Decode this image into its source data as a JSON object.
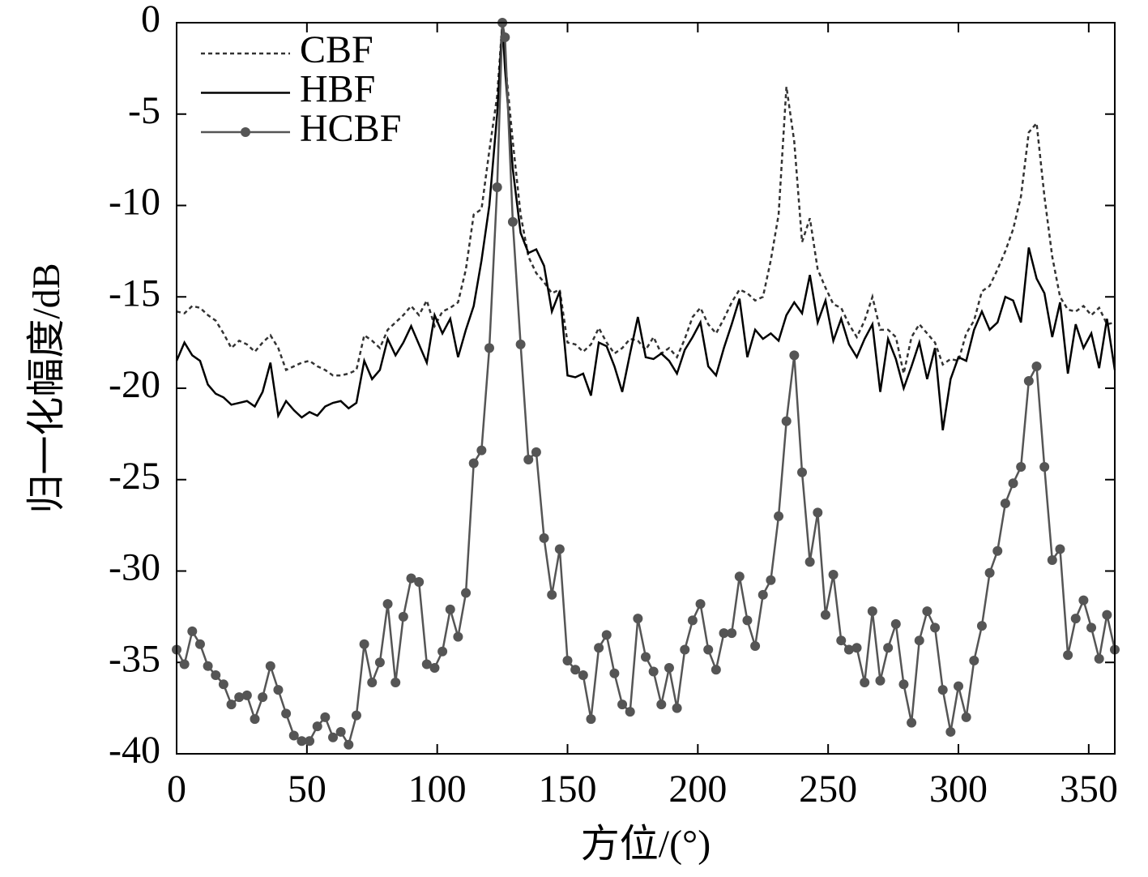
{
  "chart_data": {
    "type": "line",
    "xlabel": "方位/(°)",
    "ylabel": "归一化幅度/dB",
    "xlim": [
      0,
      360
    ],
    "xticks": [
      0,
      50,
      100,
      150,
      200,
      250,
      300,
      350
    ],
    "ylim": [
      -40,
      0
    ],
    "yticks": [
      -40,
      -35,
      -30,
      -25,
      -20,
      -15,
      -10,
      -5,
      0
    ],
    "grid": false,
    "legend": "upper left",
    "x": [
      0,
      3,
      6,
      9,
      12,
      15,
      18,
      21,
      24,
      27,
      30,
      33,
      36,
      39,
      42,
      45,
      48,
      51,
      54,
      57,
      60,
      63,
      66,
      69,
      72,
      75,
      78,
      81,
      84,
      87,
      90,
      93,
      96,
      99,
      102,
      105,
      108,
      111,
      114,
      117,
      120,
      123,
      125,
      126,
      129,
      132,
      135,
      138,
      141,
      144,
      147,
      150,
      153,
      156,
      159,
      162,
      165,
      168,
      171,
      174,
      177,
      180,
      183,
      186,
      189,
      192,
      195,
      198,
      201,
      204,
      207,
      210,
      213,
      216,
      219,
      222,
      225,
      228,
      231,
      234,
      237,
      240,
      243,
      246,
      249,
      252,
      255,
      258,
      261,
      264,
      267,
      270,
      273,
      276,
      279,
      282,
      285,
      288,
      291,
      294,
      297,
      300,
      303,
      306,
      309,
      312,
      315,
      318,
      321,
      324,
      327,
      330,
      333,
      336,
      339,
      342,
      345,
      348,
      351,
      354,
      357,
      360
    ],
    "series": [
      {
        "name": "CBF",
        "color": "#333333",
        "linestyle": "dotted",
        "marker": "none",
        "values": [
          -15.8,
          -15.9,
          -15.5,
          -15.6,
          -16,
          -16.3,
          -17,
          -17.8,
          -17.4,
          -17.6,
          -18,
          -17.5,
          -17.1,
          -17.8,
          -19,
          -18.8,
          -18.6,
          -18.5,
          -18.8,
          -19,
          -19.3,
          -19.3,
          -19.2,
          -19,
          -17.1,
          -17.4,
          -17.8,
          -16.8,
          -16.4,
          -16,
          -15.5,
          -16,
          -15.2,
          -16.6,
          -15.8,
          -15.6,
          -15.3,
          -13.5,
          -10.5,
          -10.2,
          -7,
          -4,
          0,
          -2,
          -6.5,
          -10.5,
          -12.8,
          -13.7,
          -14.2,
          -14.8,
          -14.6,
          -17.5,
          -17.6,
          -18,
          -17.6,
          -16.7,
          -17.5,
          -18.1,
          -17.8,
          -17.3,
          -17.4,
          -17.9,
          -17.2,
          -18.1,
          -17.8,
          -18.3,
          -17.3,
          -16.1,
          -15.6,
          -16.5,
          -17,
          -16.2,
          -15.3,
          -14.6,
          -14.8,
          -15.2,
          -15,
          -13,
          -10.5,
          -3.5,
          -6.5,
          -12,
          -10.7,
          -13.5,
          -14.5,
          -15.4,
          -15.6,
          -16.5,
          -17.2,
          -16.3,
          -15,
          -16.8,
          -16.8,
          -17.2,
          -19.2,
          -17.2,
          -16.5,
          -17,
          -17.5,
          -18.7,
          -18.4,
          -18.5,
          -17,
          -16.3,
          -14.7,
          -14.4,
          -13.5,
          -12.5,
          -11.3,
          -9.5,
          -6,
          -5.5,
          -9.5,
          -12.8,
          -15,
          -15.7,
          -15.8,
          -15.5,
          -16,
          -15.6,
          -16.5,
          -16.4
        ]
      },
      {
        "name": "HBF",
        "color": "#000000",
        "linestyle": "solid",
        "marker": "none",
        "values": [
          -18.5,
          -17.5,
          -18.2,
          -18.5,
          -19.8,
          -20.3,
          -20.5,
          -20.9,
          -20.8,
          -20.7,
          -21,
          -20.2,
          -18.6,
          -21.5,
          -20.7,
          -21.2,
          -21.6,
          -21.3,
          -21.5,
          -21,
          -20.8,
          -20.7,
          -21.1,
          -20.8,
          -18.5,
          -19.5,
          -19,
          -17.3,
          -18.2,
          -17.5,
          -16.6,
          -17.6,
          -18.6,
          -16,
          -17,
          -16.2,
          -18.3,
          -16.8,
          -15.5,
          -13,
          -10,
          -5,
          0,
          -2.5,
          -8,
          -11.5,
          -12.6,
          -12.4,
          -13.3,
          -15.8,
          -14.7,
          -19.3,
          -19.4,
          -19.2,
          -20.4,
          -17.5,
          -17.7,
          -18.8,
          -20.2,
          -18.1,
          -16.1,
          -18.3,
          -18.4,
          -18.1,
          -18.5,
          -19.2,
          -17.9,
          -17.2,
          -16.4,
          -18.8,
          -19.3,
          -17.8,
          -16.5,
          -15.1,
          -18.3,
          -16.8,
          -17.3,
          -17,
          -17.4,
          -16,
          -15.3,
          -15.9,
          -13.8,
          -16.4,
          -15.2,
          -17.4,
          -16.2,
          -17.6,
          -18.3,
          -17.3,
          -16.5,
          -20.2,
          -17.3,
          -18.4,
          -20,
          -18.8,
          -17.5,
          -19.5,
          -17.8,
          -22.3,
          -19.5,
          -18.3,
          -18.5,
          -16.8,
          -15.8,
          -16.8,
          -16.4,
          -15,
          -15.2,
          -16.4,
          -12.3,
          -14,
          -14.8,
          -17.2,
          -15.3,
          -19.2,
          -16.5,
          -17.8,
          -17,
          -18.9,
          -16.2,
          -19
        ]
      },
      {
        "name": "HCBF",
        "color": "#555555",
        "linestyle": "solid",
        "marker": "circle",
        "values": [
          -34.3,
          -35.1,
          -33.3,
          -34,
          -35.2,
          -35.7,
          -36.2,
          -37.3,
          -36.9,
          -36.8,
          -38.1,
          -36.9,
          -35.2,
          -36.5,
          -37.8,
          -39,
          -39.3,
          -39.3,
          -38.5,
          -38,
          -39.1,
          -38.8,
          -39.5,
          -37.9,
          -34,
          -36.1,
          -35,
          -31.8,
          -36.1,
          -32.5,
          -30.4,
          -30.6,
          -35.1,
          -35.3,
          -34.4,
          -32.1,
          -33.6,
          -31.2,
          -24.1,
          -23.4,
          -17.8,
          -9,
          0,
          -0.8,
          -10.9,
          -17.6,
          -23.9,
          -23.5,
          -28.2,
          -31.3,
          -28.8,
          -34.9,
          -35.4,
          -35.7,
          -38.1,
          -34.2,
          -33.5,
          -35.6,
          -37.3,
          -37.7,
          -32.6,
          -34.7,
          -35.5,
          -37.3,
          -35.3,
          -37.5,
          -34.3,
          -32.7,
          -31.8,
          -34.3,
          -35.4,
          -33.4,
          -33.4,
          -30.3,
          -32.7,
          -34.1,
          -31.3,
          -30.5,
          -27,
          -21.8,
          -18.2,
          -24.6,
          -29.5,
          -26.8,
          -32.4,
          -30.2,
          -33.8,
          -34.3,
          -34.2,
          -36.1,
          -32.2,
          -36,
          -34.2,
          -32.9,
          -36.2,
          -38.3,
          -33.8,
          -32.2,
          -33.1,
          -36.5,
          -38.8,
          -36.3,
          -38,
          -34.9,
          -33,
          -30.1,
          -28.9,
          -26.3,
          -25.2,
          -24.3,
          -19.6,
          -18.8,
          -24.3,
          -29.4,
          -28.8,
          -34.6,
          -32.6,
          -31.6,
          -33.1,
          -34.8,
          -32.4,
          -34.3
        ]
      }
    ]
  }
}
